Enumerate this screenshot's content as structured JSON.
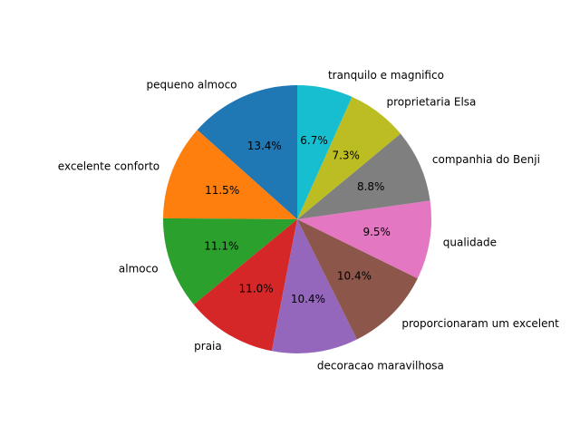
{
  "chart_data": {
    "type": "pie",
    "start_angle": "top",
    "direction": "counterclockwise",
    "slices": [
      {
        "label": "pequeno almoco",
        "value": 13.4,
        "pct_label": "13.4%",
        "color": "#1f77b4"
      },
      {
        "label": "excelente conforto",
        "value": 11.5,
        "pct_label": "11.5%",
        "color": "#ff7f0e"
      },
      {
        "label": "almoco",
        "value": 11.1,
        "pct_label": "11.1%",
        "color": "#2ca02c"
      },
      {
        "label": "praia",
        "value": 11.0,
        "pct_label": "11.0%",
        "color": "#d62728"
      },
      {
        "label": "decoracao maravilhosa",
        "value": 10.4,
        "pct_label": "10.4%",
        "color": "#9467bd"
      },
      {
        "label": "proporcionaram um excelent",
        "value": 10.4,
        "pct_label": "10.4%",
        "color": "#8c564b"
      },
      {
        "label": "qualidade",
        "value": 9.5,
        "pct_label": "9.5%",
        "color": "#e377c2"
      },
      {
        "label": "companhia do Benji",
        "value": 8.8,
        "pct_label": "8.8%",
        "color": "#7f7f7f"
      },
      {
        "label": "proprietaria Elsa",
        "value": 7.3,
        "pct_label": "7.3%",
        "color": "#bcbd22"
      },
      {
        "label": "tranquilo e magnifico",
        "value": 6.7,
        "pct_label": "6.7%",
        "color": "#17becf"
      }
    ]
  }
}
